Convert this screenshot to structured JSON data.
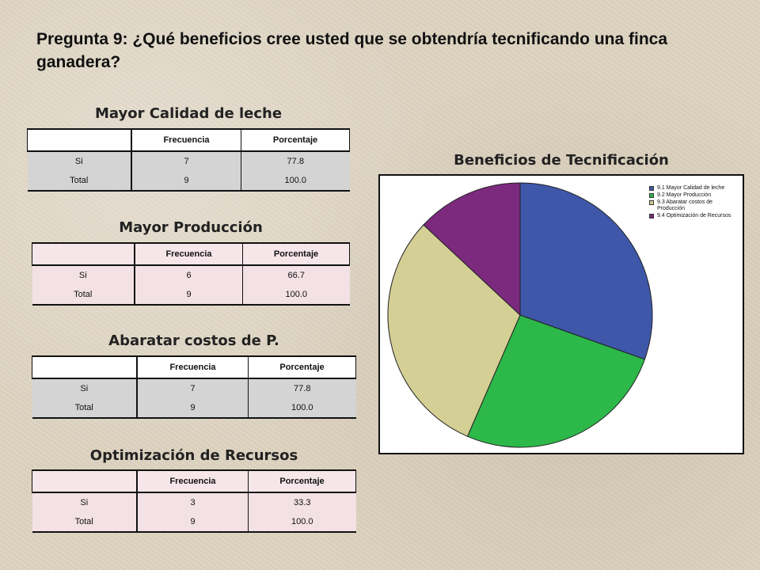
{
  "question": "Pregunta 9: ¿Qué beneficios cree usted que se obtendría tecnificando una finca ganadera?",
  "tables": [
    {
      "title": "Mayor Calidad de leche",
      "columns": [
        "",
        "Frecuencia",
        "Porcentaje"
      ],
      "rows": [
        [
          "Si",
          "7",
          "77.8"
        ],
        [
          "Total",
          "9",
          "100.0"
        ]
      ]
    },
    {
      "title": "Mayor Producción",
      "columns": [
        "",
        "Frecuencia",
        "Porcentaje"
      ],
      "rows": [
        [
          "Si",
          "6",
          "66.7"
        ],
        [
          "Total",
          "9",
          "100.0"
        ]
      ]
    },
    {
      "title": "Abaratar costos de P.",
      "columns": [
        "",
        "Frecuencia",
        "Porcentaje"
      ],
      "rows": [
        [
          "Si",
          "7",
          "77.8"
        ],
        [
          "Total",
          "9",
          "100.0"
        ]
      ]
    },
    {
      "title": "Optimización de Recursos",
      "columns": [
        "",
        "Frecuencia",
        "Porcentaje"
      ],
      "rows": [
        [
          "Si",
          "3",
          "33.3"
        ],
        [
          "Total",
          "9",
          "100.0"
        ]
      ]
    }
  ],
  "chart_data": {
    "type": "pie",
    "title": "Beneficios de Tecnificación",
    "legend_position": "top-right",
    "categories": [
      "9.1 Mayor Calidad de leche",
      "9.2 Mayor Producción",
      "9.3 Abaratar costos de Producción",
      "9.4 Optimización de Recursos"
    ],
    "values": [
      7,
      6,
      7,
      3
    ],
    "colors": [
      "#3f57a9",
      "#2db84a",
      "#d4cf94",
      "#7b2a7e"
    ]
  }
}
